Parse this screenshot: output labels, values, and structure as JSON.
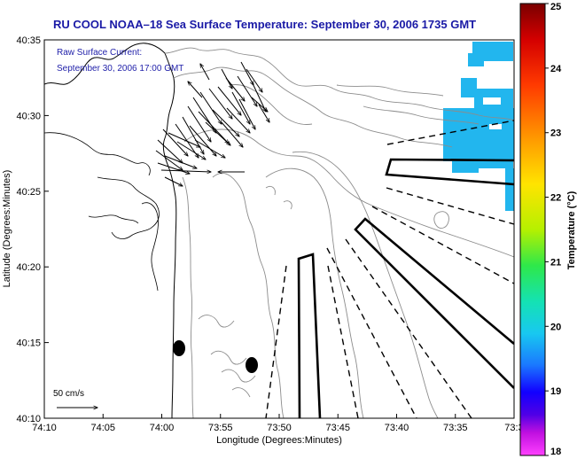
{
  "title": "RU COOL  NOAA–18  Sea Surface Temperature:  September 30, 2006 1735 GMT",
  "overlay": {
    "line1": "Raw Surface Current:",
    "line2": "September 30, 2006 17:00 GMT"
  },
  "axes": {
    "xlabel": "Longitude (Degrees:Minutes)",
    "ylabel": "Latitude (Degrees:Minutes)",
    "xticks": [
      "74:10",
      "74:05",
      "74:00",
      "73:55",
      "73:50",
      "73:45",
      "73:40",
      "73:35",
      "73:3"
    ],
    "yticks": [
      "40:35",
      "40:30",
      "40:25",
      "40:20",
      "40:15",
      "40:10"
    ]
  },
  "scale": {
    "label": "50 cm/s"
  },
  "colorbar": {
    "label": "Temperature (°C)",
    "ticks": [
      "25",
      "24",
      "23",
      "22",
      "21",
      "20",
      "19",
      "18"
    ],
    "min": 18,
    "max": 25
  },
  "colors": {
    "title": "#1a1aa6",
    "sst_patch": "#22b6ee"
  }
}
